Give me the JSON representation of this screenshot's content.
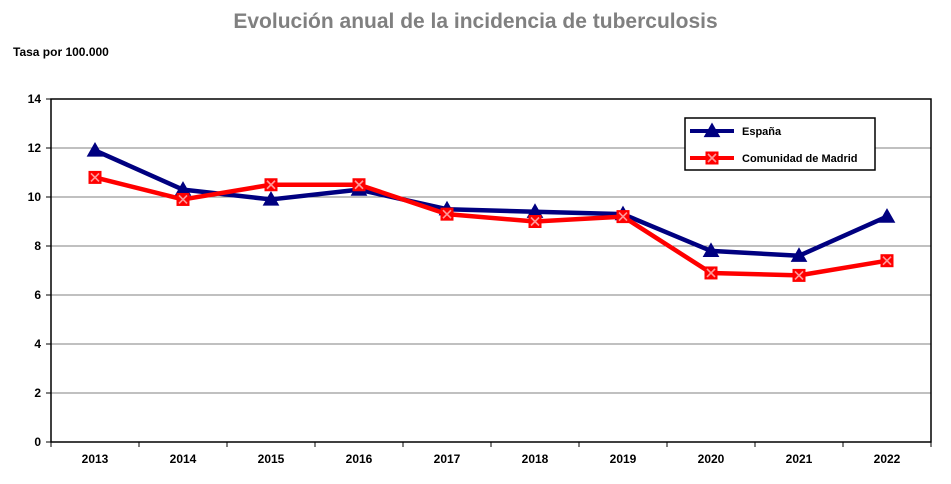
{
  "chart_data": {
    "type": "line",
    "title": "Evolución anual de la incidencia de tuberculosis",
    "ylabel": "Tasa por 100.000",
    "xlabel": "",
    "categories": [
      "2013",
      "2014",
      "2015",
      "2016",
      "2017",
      "2018",
      "2019",
      "2020",
      "2021",
      "2022"
    ],
    "ylim": [
      0,
      14
    ],
    "yticks": [
      0,
      2,
      4,
      6,
      8,
      10,
      12,
      14
    ],
    "grid": true,
    "legend_position": "top-right",
    "series": [
      {
        "name": "España",
        "color": "#000080",
        "marker": "triangle",
        "values": [
          11.9,
          10.3,
          9.9,
          10.3,
          9.5,
          9.4,
          9.3,
          7.8,
          7.6,
          9.2
        ]
      },
      {
        "name": "Comunidad de Madrid",
        "color": "#ff0000",
        "marker": "x-square",
        "values": [
          10.8,
          9.9,
          10.5,
          10.5,
          9.3,
          9.0,
          9.2,
          6.9,
          6.8,
          7.4
        ]
      }
    ]
  }
}
